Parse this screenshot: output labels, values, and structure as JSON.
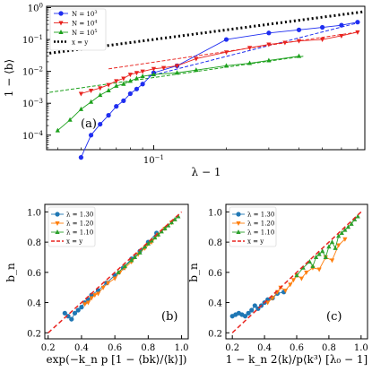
{
  "chart_data": [
    {
      "type": "line",
      "panel_label": "(a)",
      "xlabel": "λ − 1",
      "ylabel": "1 − ⟨b⟩",
      "xscale": "log",
      "yscale": "log",
      "xlim": [
        0.036,
        0.75
      ],
      "ylim": [
        3.5e-05,
        1.1
      ],
      "xticks": [
        {
          "v": 0.1,
          "label": "10^-1"
        }
      ],
      "yticks": [
        {
          "v": 0.0001,
          "label": "10^-4"
        },
        {
          "v": 0.001,
          "label": "10^-3"
        },
        {
          "v": 0.01,
          "label": "10^-2"
        },
        {
          "v": 0.1,
          "label": "10^-1"
        },
        {
          "v": 1,
          "label": "10^0"
        }
      ],
      "legend_position": "top-left",
      "series": [
        {
          "name": "N = 10^3",
          "color": "#1f2ef0",
          "marker": "circle",
          "x": [
            0.05,
            0.055,
            0.06,
            0.065,
            0.07,
            0.075,
            0.08,
            0.085,
            0.09,
            0.1,
            0.125,
            0.2,
            0.3,
            0.4,
            0.5,
            0.6,
            0.7
          ],
          "y": [
            2e-05,
            0.0001,
            0.00022,
            0.00042,
            0.0008,
            0.0012,
            0.002,
            0.0028,
            0.004,
            0.009,
            0.015,
            0.1,
            0.16,
            0.2,
            0.24,
            0.28,
            0.35
          ]
        },
        {
          "name": "N = 10^4",
          "color": "#e8231f",
          "marker": "triangle-down",
          "x": [
            0.05,
            0.055,
            0.06,
            0.065,
            0.07,
            0.075,
            0.08,
            0.085,
            0.09,
            0.1,
            0.11,
            0.125,
            0.15,
            0.2,
            0.25,
            0.3,
            0.35,
            0.4,
            0.5,
            0.6,
            0.7
          ],
          "y": [
            0.002,
            0.0025,
            0.003,
            0.0038,
            0.005,
            0.006,
            0.008,
            0.009,
            0.01,
            0.012,
            0.013,
            0.015,
            0.025,
            0.04,
            0.055,
            0.07,
            0.08,
            0.09,
            0.1,
            0.13,
            0.17
          ]
        },
        {
          "name": "N = 10^5",
          "color": "#1ca01c",
          "marker": "triangle-up",
          "x": [
            0.04,
            0.045,
            0.05,
            0.055,
            0.06,
            0.065,
            0.07,
            0.075,
            0.08,
            0.085,
            0.09,
            0.1,
            0.125,
            0.15,
            0.2,
            0.25,
            0.3,
            0.4
          ],
          "y": [
            0.00014,
            0.0003,
            0.00065,
            0.0011,
            0.0018,
            0.0025,
            0.0035,
            0.004,
            0.005,
            0.006,
            0.007,
            0.008,
            0.009,
            0.011,
            0.015,
            0.018,
            0.022,
            0.03
          ]
        },
        {
          "name": "x = y",
          "color": "#000000",
          "style": "dotted",
          "x": [
            0.037,
            0.75
          ],
          "y": [
            0.037,
            0.75
          ]
        }
      ],
      "fit_lines": [
        {
          "color": "#1f2ef0",
          "x": [
            0.095,
            0.7
          ],
          "y": [
            0.007,
            0.33
          ]
        },
        {
          "color": "#e8231f",
          "x": [
            0.065,
            0.7
          ],
          "y": [
            0.012,
            0.17
          ]
        },
        {
          "color": "#1ca01c",
          "x": [
            0.037,
            0.42
          ],
          "y": [
            0.0022,
            0.03
          ]
        }
      ]
    },
    {
      "type": "line",
      "panel_label": "(b)",
      "xlabel": "exp(−k_n p [1 − ⟨bk⟩/⟨k⟩])",
      "ylabel": "b_n",
      "xlim": [
        0.18,
        1.04
      ],
      "ylim": [
        0.16,
        1.05
      ],
      "xticks": [
        0.2,
        0.4,
        0.6,
        0.8,
        1.0
      ],
      "yticks": [
        0.2,
        0.4,
        0.6,
        0.8,
        1.0
      ],
      "legend_position": "top-left",
      "series": [
        {
          "name": "λ = 1.30",
          "color": "#1f77b4",
          "marker": "circle",
          "x": [
            0.3,
            0.32,
            0.34,
            0.36,
            0.38,
            0.4,
            0.42,
            0.44,
            0.46,
            0.5,
            0.55,
            0.6,
            0.65,
            0.7,
            0.75,
            0.8,
            0.85
          ],
          "y": [
            0.33,
            0.31,
            0.29,
            0.33,
            0.35,
            0.37,
            0.4,
            0.42,
            0.45,
            0.48,
            0.53,
            0.58,
            0.63,
            0.69,
            0.74,
            0.8,
            0.86
          ]
        },
        {
          "name": "λ = 1.20",
          "color": "#ff7f0e",
          "marker": "triangle-down",
          "x": [
            0.42,
            0.44,
            0.46,
            0.48,
            0.5,
            0.53,
            0.56,
            0.6,
            0.63,
            0.66,
            0.7,
            0.74,
            0.78,
            0.82,
            0.86,
            0.9,
            0.94
          ],
          "y": [
            0.39,
            0.4,
            0.43,
            0.45,
            0.46,
            0.5,
            0.53,
            0.56,
            0.6,
            0.63,
            0.67,
            0.72,
            0.76,
            0.8,
            0.85,
            0.89,
            0.93
          ]
        },
        {
          "name": "λ = 1.10",
          "color": "#2ca02c",
          "marker": "triangle-up",
          "x": [
            0.62,
            0.66,
            0.7,
            0.72,
            0.75,
            0.78,
            0.8,
            0.82,
            0.84,
            0.86,
            0.88,
            0.9,
            0.92,
            0.94,
            0.96,
            0.98
          ],
          "y": [
            0.6,
            0.64,
            0.68,
            0.7,
            0.73,
            0.77,
            0.79,
            0.81,
            0.83,
            0.85,
            0.87,
            0.89,
            0.91,
            0.93,
            0.95,
            0.97
          ]
        },
        {
          "name": "x = y",
          "color": "#e8231f",
          "style": "dashed",
          "x": [
            0.2,
            1.0
          ],
          "y": [
            0.2,
            1.0
          ]
        }
      ]
    },
    {
      "type": "line",
      "panel_label": "(c)",
      "xlabel": "1 − k_n 2⟨k⟩/p⟨k³⟩ [λ₀ − 1]",
      "ylabel": "b_n",
      "xlim": [
        0.16,
        1.04
      ],
      "ylim": [
        0.16,
        1.05
      ],
      "xticks": [
        0.2,
        0.4,
        0.6,
        0.8,
        1.0
      ],
      "yticks": [
        0.2,
        0.4,
        0.6,
        0.8,
        1.0
      ],
      "legend_position": "top-left",
      "series": [
        {
          "name": "λ = 1.30",
          "color": "#1f77b4",
          "marker": "circle",
          "x": [
            0.2,
            0.22,
            0.24,
            0.26,
            0.28,
            0.3,
            0.32,
            0.34,
            0.36,
            0.38,
            0.4,
            0.42,
            0.45,
            0.48,
            0.52
          ],
          "y": [
            0.31,
            0.32,
            0.33,
            0.32,
            0.31,
            0.33,
            0.35,
            0.38,
            0.36,
            0.38,
            0.4,
            0.42,
            0.43,
            0.46,
            0.47
          ]
        },
        {
          "name": "λ = 1.20",
          "color": "#ff7f0e",
          "marker": "triangle-down",
          "x": [
            0.42,
            0.45,
            0.48,
            0.5,
            0.53,
            0.56,
            0.58,
            0.6,
            0.63,
            0.66,
            0.7,
            0.74,
            0.78,
            0.82,
            0.86,
            0.9
          ],
          "y": [
            0.4,
            0.43,
            0.47,
            0.5,
            0.48,
            0.52,
            0.55,
            0.58,
            0.56,
            0.6,
            0.63,
            0.62,
            0.7,
            0.68,
            0.78,
            0.82
          ]
        },
        {
          "name": "λ = 1.10",
          "color": "#2ca02c",
          "marker": "triangle-up",
          "x": [
            0.6,
            0.64,
            0.68,
            0.7,
            0.72,
            0.74,
            0.76,
            0.78,
            0.8,
            0.82,
            0.84,
            0.86,
            0.88,
            0.9,
            0.92,
            0.94,
            0.96,
            0.98
          ],
          "y": [
            0.58,
            0.63,
            0.67,
            0.64,
            0.7,
            0.72,
            0.74,
            0.7,
            0.77,
            0.8,
            0.76,
            0.84,
            0.86,
            0.88,
            0.9,
            0.92,
            0.95,
            0.97
          ]
        },
        {
          "name": "x = y",
          "color": "#e8231f",
          "style": "dashed",
          "x": [
            0.2,
            1.0
          ],
          "y": [
            0.2,
            1.0
          ]
        }
      ]
    }
  ]
}
